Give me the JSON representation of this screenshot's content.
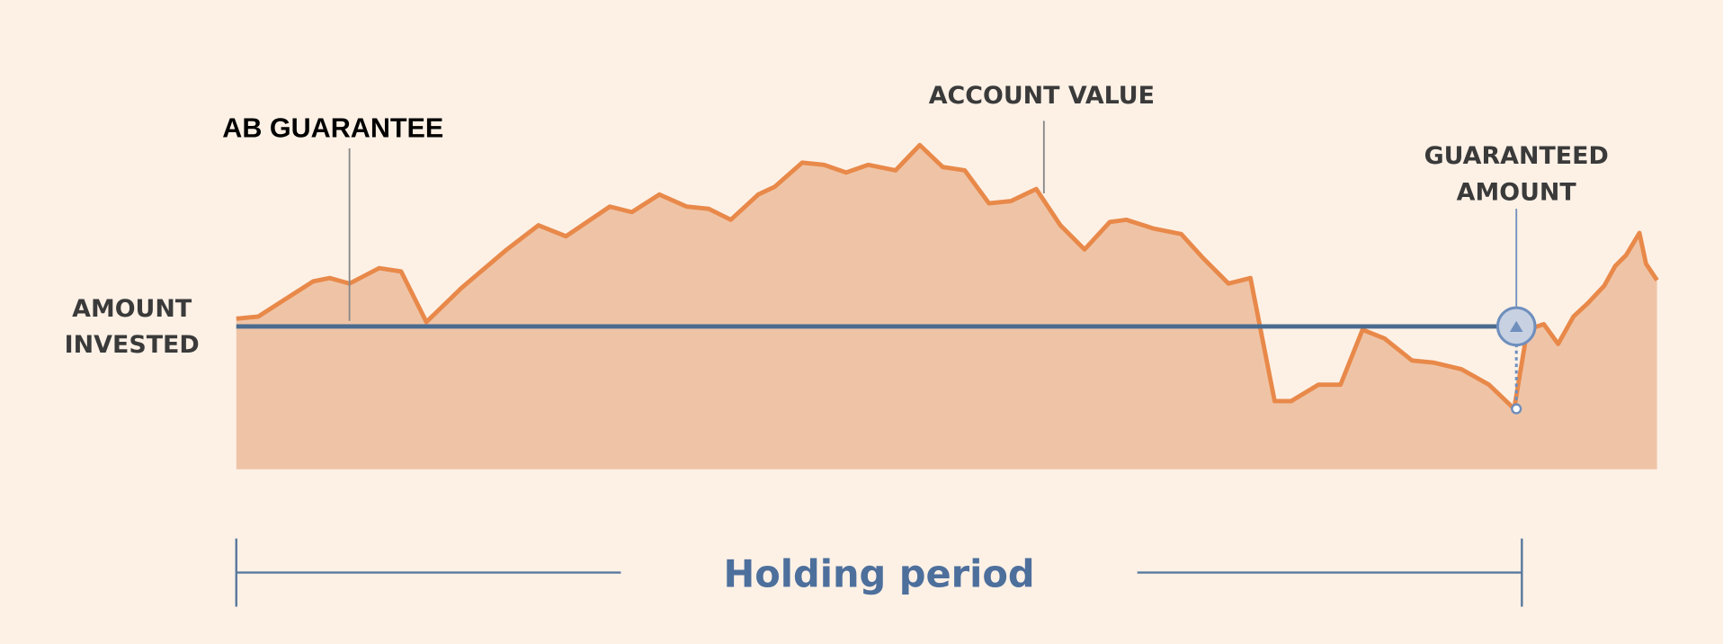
{
  "labels": {
    "amount_invested": [
      "AMOUNT",
      "INVESTED"
    ],
    "ab_guarantee": "AB GUARANTEE",
    "account_value": "ACCOUNT VALUE",
    "guaranteed_amount": [
      "GUARANTEED",
      "AMOUNT"
    ],
    "holding_period": "Holding period"
  }
}
